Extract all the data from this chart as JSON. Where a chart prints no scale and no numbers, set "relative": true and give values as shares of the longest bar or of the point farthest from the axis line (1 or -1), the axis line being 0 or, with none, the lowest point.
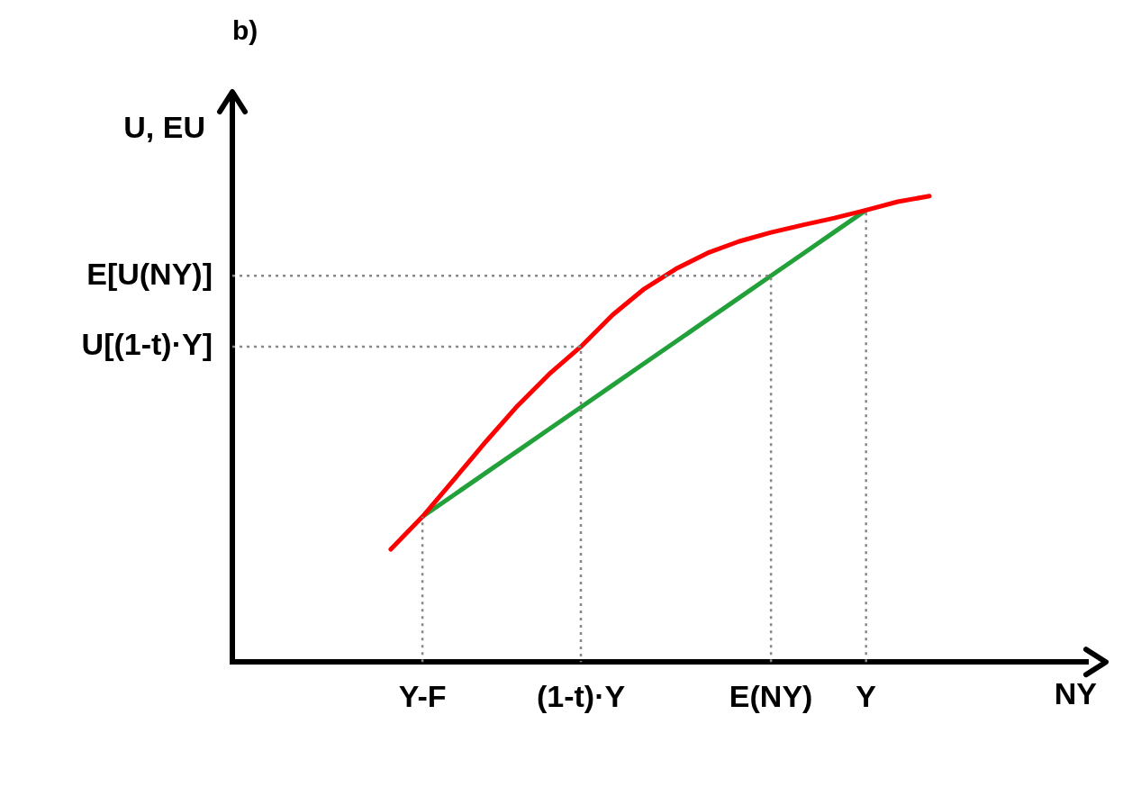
{
  "chart_data": {
    "type": "line",
    "title": "b)",
    "xlabel": "NY",
    "ylabel": "U, EU",
    "relative": true,
    "legend": false,
    "marker": "none",
    "categories": [
      null,
      null,
      null,
      null,
      null,
      null,
      "Y-F",
      null,
      null,
      null,
      null,
      "(1-t)·Y",
      null,
      null,
      null,
      null,
      null,
      "E(NY)",
      null,
      null,
      "Y",
      null,
      null,
      null,
      null,
      null,
      null,
      null
    ],
    "series": [
      {
        "color": "#ff0000",
        "values": [
          null,
          null,
          null,
          null,
          null,
          0.242,
          0.312,
          0.392,
          0.473,
          0.55,
          0.618,
          0.677,
          0.745,
          0.801,
          0.844,
          0.878,
          0.903,
          0.922,
          0.938,
          0.953,
          0.97,
          0.988,
          1,
          null,
          null,
          null,
          null,
          null
        ]
      },
      {
        "color": "#22a03a",
        "values": [
          null,
          null,
          null,
          null,
          null,
          null,
          0.312,
          0.359,
          0.406,
          0.453,
          0.5,
          0.547,
          0.594,
          0.641,
          0.688,
          0.735,
          0.782,
          0.829,
          0.876,
          0.923,
          0.97,
          null,
          null,
          null,
          null,
          null,
          null,
          null
        ]
      }
    ],
    "ref_lines": [
      {
        "axis": "y",
        "value": 0.829,
        "label": "E[U(NY)]",
        "color": "#888888",
        "line_style": "dotted"
      },
      {
        "axis": "y",
        "value": 0.677,
        "label": "U[(1-t)·Y]",
        "color": "#888888",
        "line_style": "dotted"
      },
      {
        "axis": "x",
        "value": "Y-F",
        "color": "#888888",
        "line_style": "dotted"
      },
      {
        "axis": "x",
        "value": "Y",
        "color": "#888888",
        "line_style": "dotted"
      }
    ]
  }
}
